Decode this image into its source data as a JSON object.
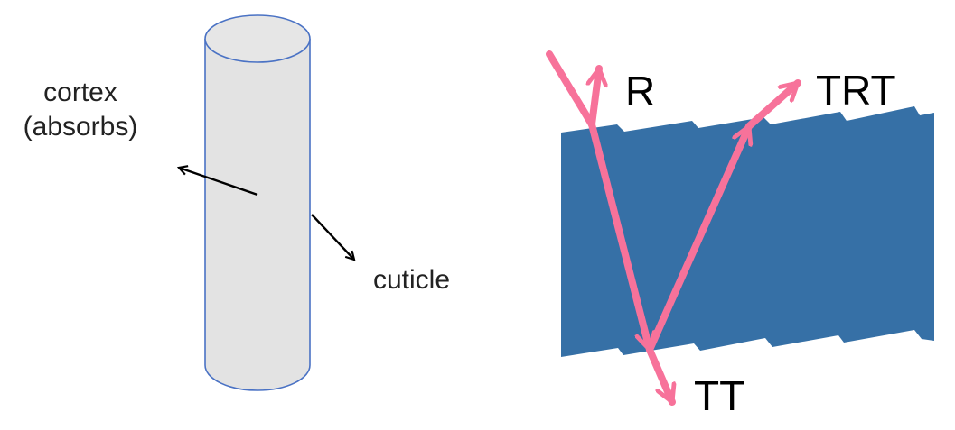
{
  "left_panel": {
    "cortex_label": "cortex",
    "absorbs_label": "(absorbs)",
    "cuticle_label": "cuticle",
    "cylinder_fill": "#e3e3e3",
    "cylinder_stroke": "#4a72c4"
  },
  "right_panel": {
    "labels": {
      "r": "R",
      "trt": "TRT",
      "tt": "TT"
    },
    "fiber_color": "#3670a6",
    "ray_color": "#f7729a"
  }
}
